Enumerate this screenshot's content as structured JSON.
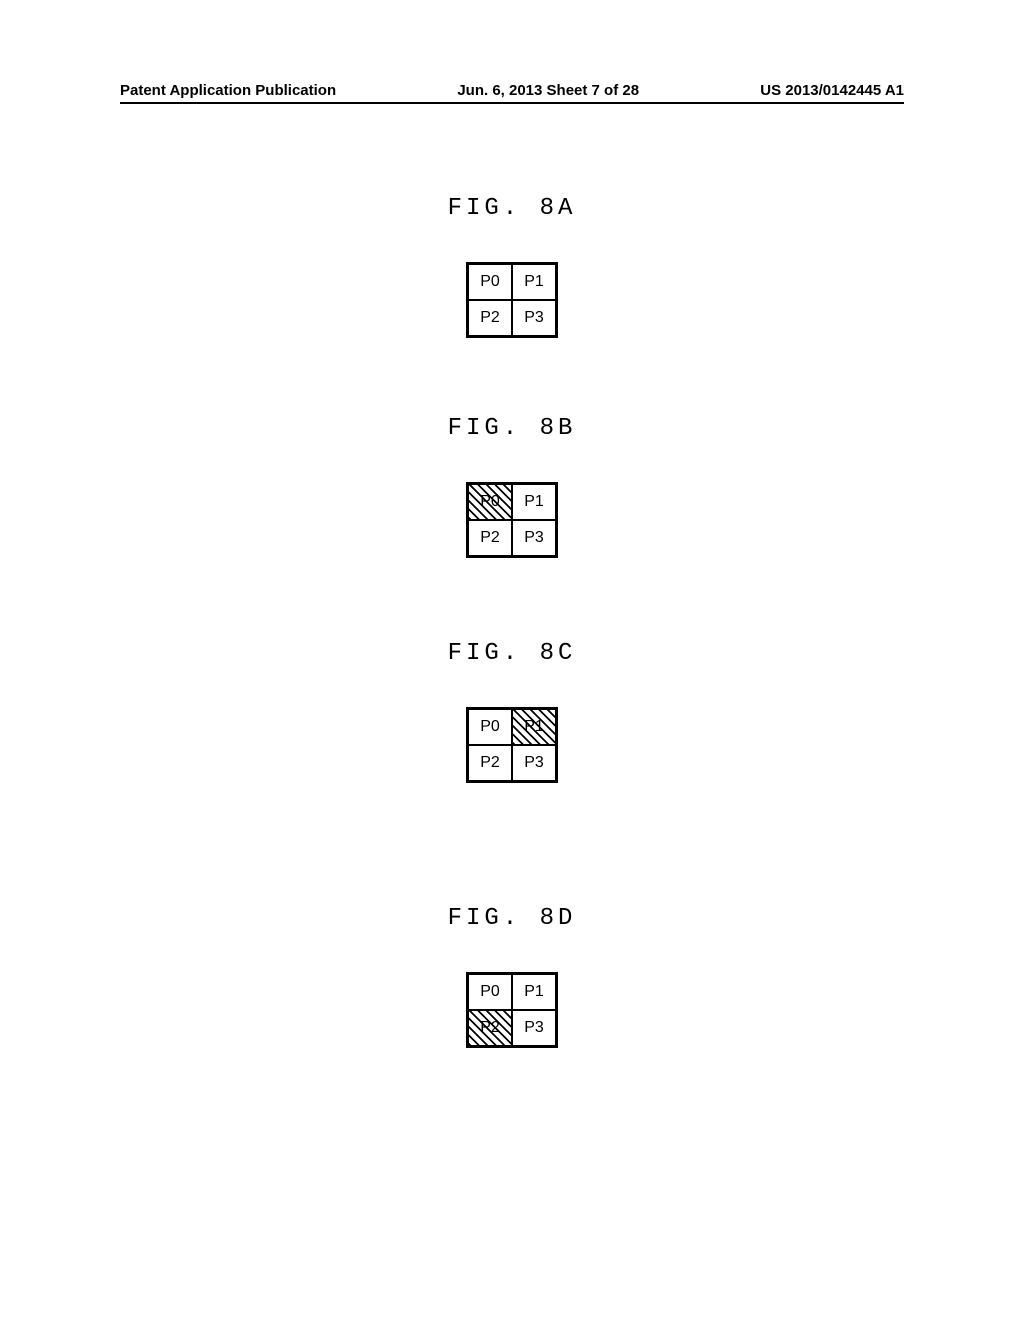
{
  "header": {
    "left": "Patent Application Publication",
    "center": "Jun. 6, 2013  Sheet 7 of 28",
    "right": "US 2013/0142445 A1"
  },
  "figures": [
    {
      "title": "FIG. 8A",
      "cells": [
        [
          {
            "label": "P0",
            "hatched": false
          },
          {
            "label": "P1",
            "hatched": false
          }
        ],
        [
          {
            "label": "P2",
            "hatched": false
          },
          {
            "label": "P3",
            "hatched": false
          }
        ]
      ]
    },
    {
      "title": "FIG. 8B",
      "cells": [
        [
          {
            "label": "P0",
            "hatched": true
          },
          {
            "label": "P1",
            "hatched": false
          }
        ],
        [
          {
            "label": "P2",
            "hatched": false
          },
          {
            "label": "P3",
            "hatched": false
          }
        ]
      ]
    },
    {
      "title": "FIG. 8C",
      "cells": [
        [
          {
            "label": "P0",
            "hatched": false
          },
          {
            "label": "P1",
            "hatched": true
          }
        ],
        [
          {
            "label": "P2",
            "hatched": false
          },
          {
            "label": "P3",
            "hatched": false
          }
        ]
      ]
    },
    {
      "title": "FIG. 8D",
      "cells": [
        [
          {
            "label": "P0",
            "hatched": false
          },
          {
            "label": "P1",
            "hatched": false
          }
        ],
        [
          {
            "label": "P2",
            "hatched": true
          },
          {
            "label": "P3",
            "hatched": false
          }
        ]
      ]
    }
  ]
}
